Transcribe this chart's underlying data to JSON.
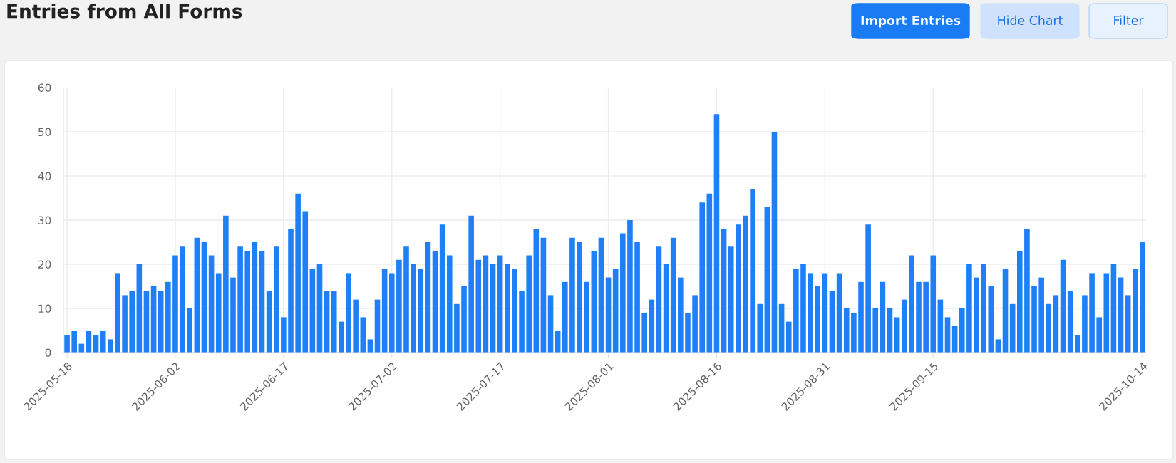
{
  "chart_data": {
    "type": "bar",
    "title": "Entries from All Forms",
    "annotations": [
      "Import Entries",
      "Hide Chart",
      "Filter"
    ],
    "categories": [
      "2025-05-18",
      null,
      null,
      null,
      null,
      null,
      null,
      null,
      null,
      null,
      null,
      null,
      null,
      null,
      null,
      "2025-06-02",
      null,
      null,
      null,
      null,
      null,
      null,
      null,
      null,
      null,
      null,
      null,
      null,
      null,
      null,
      "2025-06-17",
      null,
      null,
      null,
      null,
      null,
      null,
      null,
      null,
      null,
      null,
      null,
      null,
      null,
      null,
      "2025-07-02",
      null,
      null,
      null,
      null,
      null,
      null,
      null,
      null,
      null,
      null,
      null,
      null,
      null,
      null,
      "2025-07-17",
      null,
      null,
      null,
      null,
      null,
      null,
      null,
      null,
      null,
      null,
      null,
      null,
      null,
      null,
      "2025-08-01",
      null,
      null,
      null,
      null,
      null,
      null,
      null,
      null,
      null,
      null,
      null,
      null,
      null,
      null,
      "2025-08-16",
      null,
      null,
      null,
      null,
      null,
      null,
      null,
      null,
      null,
      null,
      null,
      null,
      null,
      null,
      "2025-08-31",
      null,
      null,
      null,
      null,
      null,
      null,
      null,
      null,
      null,
      null,
      null,
      null,
      null,
      null,
      "2025-09-15",
      null,
      null,
      null,
      null,
      null,
      null,
      null,
      null,
      null,
      null,
      null,
      null,
      null,
      null,
      null,
      null,
      null,
      null,
      null,
      null,
      null,
      null,
      null,
      null,
      null,
      null,
      null,
      null,
      "2025-10-14"
    ],
    "values": [
      4,
      5,
      2,
      5,
      4,
      5,
      3,
      18,
      13,
      14,
      20,
      14,
      15,
      14,
      16,
      22,
      24,
      10,
      26,
      25,
      22,
      18,
      31,
      17,
      24,
      23,
      25,
      23,
      14,
      24,
      8,
      28,
      36,
      32,
      19,
      20,
      14,
      14,
      7,
      18,
      12,
      8,
      3,
      12,
      19,
      18,
      21,
      24,
      20,
      19,
      25,
      23,
      29,
      22,
      11,
      15,
      31,
      21,
      22,
      20,
      22,
      20,
      19,
      14,
      22,
      28,
      26,
      13,
      5,
      16,
      26,
      25,
      16,
      23,
      26,
      17,
      19,
      27,
      30,
      25,
      9,
      12,
      24,
      20,
      26,
      17,
      9,
      13,
      34,
      36,
      54,
      28,
      24,
      29,
      31,
      37,
      11,
      33,
      50,
      11,
      7,
      19,
      20,
      18,
      15,
      18,
      14,
      18,
      10,
      9,
      16,
      29,
      10,
      16,
      10,
      8,
      12,
      22,
      16,
      16,
      22,
      12,
      8,
      6,
      10,
      20,
      17,
      20,
      15,
      3,
      19,
      11,
      23,
      28,
      15,
      17,
      11,
      13,
      21,
      14,
      4,
      13,
      18,
      8,
      18,
      20,
      17,
      13,
      19,
      25
    ],
    "color": "#1f7ff7",
    "ylim": [
      0,
      60
    ],
    "yticks": [
      0,
      10,
      20,
      30,
      40,
      50,
      60
    ],
    "grid": true
  }
}
